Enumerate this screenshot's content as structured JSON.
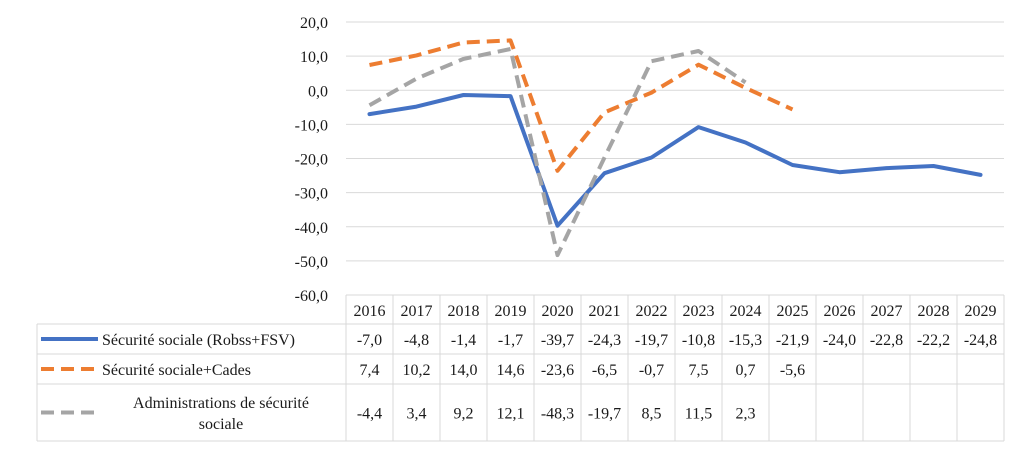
{
  "chart_data": {
    "type": "line",
    "title": "",
    "xlabel": "",
    "ylabel": "",
    "ylim": [
      -60,
      20
    ],
    "y_ticks": [
      "20,0",
      "10,0",
      "0,0",
      "-10,0",
      "-20,0",
      "-30,0",
      "-40,0",
      "-50,0",
      "-60,0"
    ],
    "categories": [
      "2016",
      "2017",
      "2018",
      "2019",
      "2020",
      "2021",
      "2022",
      "2023",
      "2024",
      "2025",
      "2026",
      "2027",
      "2028",
      "2029"
    ],
    "grid": "horizontal",
    "legend": "data-table",
    "series": [
      {
        "name": "Sécurité sociale (Robss+FSV)",
        "name_lines": [
          "Sécurité sociale (Robss+FSV)"
        ],
        "color": "#4472C4",
        "style": "solid",
        "values": [
          -7.0,
          -4.8,
          -1.4,
          -1.7,
          -39.7,
          -24.3,
          -19.7,
          -10.8,
          -15.3,
          -21.9,
          -24.0,
          -22.8,
          -22.2,
          -24.8
        ],
        "labels": [
          "-7,0",
          "-4,8",
          "-1,4",
          "-1,7",
          "-39,7",
          "-24,3",
          "-19,7",
          "-10,8",
          "-15,3",
          "-21,9",
          "-24,0",
          "-22,8",
          "-22,2",
          "-24,8"
        ]
      },
      {
        "name": "Sécurité sociale+Cades",
        "name_lines": [
          "Sécurité sociale+Cades"
        ],
        "color": "#ED7D31",
        "style": "dashed",
        "values": [
          7.4,
          10.2,
          14.0,
          14.6,
          -23.6,
          -6.5,
          -0.7,
          7.5,
          0.7,
          -5.6,
          null,
          null,
          null,
          null
        ],
        "labels": [
          "7,4",
          "10,2",
          "14,0",
          "14,6",
          "-23,6",
          "-6,5",
          "-0,7",
          "7,5",
          "0,7",
          "-5,6",
          "",
          "",
          "",
          ""
        ]
      },
      {
        "name": "Administrations de sécurité sociale",
        "name_lines": [
          "Administrations de sécurité",
          "sociale"
        ],
        "color": "#A5A5A5",
        "style": "dashed",
        "values": [
          -4.4,
          3.4,
          9.2,
          12.1,
          -48.3,
          -19.7,
          8.5,
          11.5,
          2.3,
          null,
          null,
          null,
          null,
          null
        ],
        "labels": [
          "-4,4",
          "3,4",
          "9,2",
          "12,1",
          "-48,3",
          "-19,7",
          "8,5",
          "11,5",
          "2,3",
          "",
          "",
          "",
          "",
          ""
        ]
      }
    ]
  }
}
